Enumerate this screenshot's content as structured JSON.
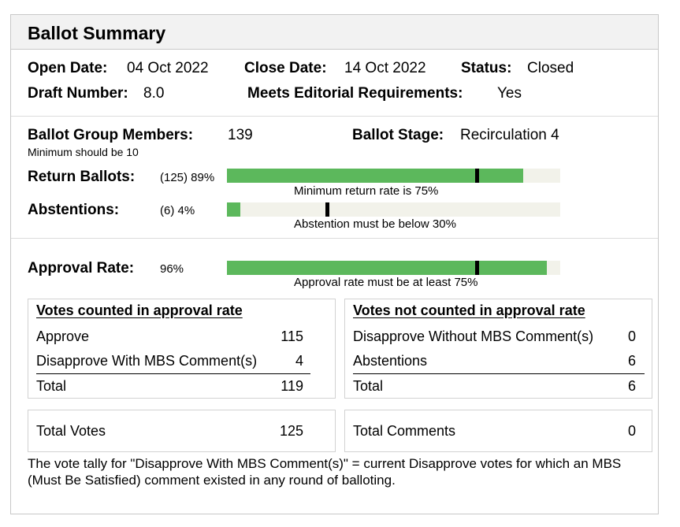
{
  "header": {
    "title": "Ballot Summary"
  },
  "dates": {
    "open_label": "Open Date:",
    "open_value": "04 Oct 2022",
    "close_label": "Close Date:",
    "close_value": "14 Oct 2022",
    "status_label": "Status:",
    "status_value": "Closed",
    "draft_label": "Draft Number:",
    "draft_value": "8.0",
    "editorial_label": "Meets Editorial Requirements:",
    "editorial_value": "Yes"
  },
  "members": {
    "label": "Ballot Group Members:",
    "value": "139",
    "note": "Minimum should be 10",
    "stage_label": "Ballot Stage:",
    "stage_value": "Recirculation 4"
  },
  "return_ballots": {
    "label": "Return Ballots:",
    "value_text": "(125) 89%",
    "fill": 0.89,
    "threshold": 0.75,
    "note": "Minimum return rate is 75%"
  },
  "abstentions": {
    "label": "Abstentions:",
    "value_text": "(6) 4%",
    "fill": 0.04,
    "threshold": 0.3,
    "note": "Abstention must be below 30%"
  },
  "approval": {
    "label": "Approval Rate:",
    "value_text": "96%",
    "fill": 0.96,
    "threshold": 0.75,
    "note": "Approval rate must be at least 75%"
  },
  "counted": {
    "title": "Votes counted in approval rate",
    "rows": [
      {
        "label": "Approve",
        "value": "115"
      },
      {
        "label": "Disapprove With MBS Comment(s)",
        "value": "4"
      }
    ],
    "total_label": "Total",
    "total_value": "119"
  },
  "not_counted": {
    "title": "Votes not counted in approval rate",
    "rows": [
      {
        "label": "Disapprove Without MBS Comment(s)",
        "value": "0"
      },
      {
        "label": "Abstentions",
        "value": "6"
      }
    ],
    "total_label": "Total",
    "total_value": "6"
  },
  "totals": {
    "votes_label": "Total Votes",
    "votes_value": "125",
    "comments_label": "Total Comments",
    "comments_value": "0"
  },
  "footnote": "The vote tally for \"Disapprove With MBS Comment(s)\" = current Disapprove votes for which an MBS (Must Be Satisfied) comment existed in any round of balloting.",
  "colors": {
    "bar_fill": "#5cb85c",
    "bar_track": "#f2f2ea",
    "marker": "#000000",
    "header_bg": "#f2f2f2"
  }
}
